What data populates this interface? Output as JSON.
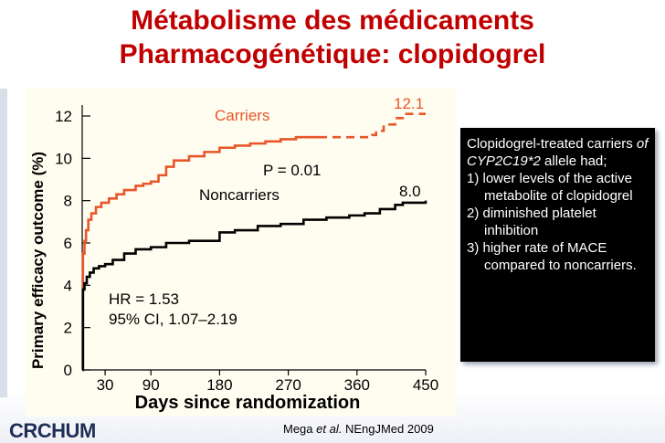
{
  "slide": {
    "title_line1": "Métabolisme des médicaments",
    "title_line2": "Pharmacogénétique: clopidogrel"
  },
  "callout": {
    "intro_a": "Clopidogrel-treated carriers ",
    "intro_allele": "of CYP2C19*2",
    "intro_b": " allele had;",
    "item1": "1) lower levels of the active metabolite of clopidogrel",
    "item2": "2) diminished platelet inhibition",
    "item3": "3) higher rate of MACE compared to noncarriers."
  },
  "footer": {
    "logo": "CRCHUM",
    "citation_author": "Mega",
    "citation_etal": "et al.",
    "citation_rest": " NEngJMed 2009"
  },
  "colors": {
    "title": "#c00000",
    "carriers": "#e8562a",
    "noncarriers": "#000000",
    "chart_background": "#fffdf0"
  },
  "chart_data": {
    "type": "line",
    "xlabel": "Days since randomization",
    "ylabel": "Primary efficacy outcome (%)",
    "xlim": [
      0,
      450
    ],
    "ylim": [
      0,
      12
    ],
    "xticks": [
      30,
      90,
      180,
      270,
      360,
      450
    ],
    "yticks": [
      0,
      2,
      4,
      6,
      8,
      10,
      12
    ],
    "annotations": {
      "p_value": "P = 0.01",
      "hr": "HR = 1.53",
      "ci": "95% CI, 1.07–2.19"
    },
    "series": [
      {
        "name": "Carriers",
        "end_label": "12.1",
        "color": "#e8562a",
        "dashed_from_x": 310,
        "points": [
          [
            0,
            0
          ],
          [
            1,
            5.5
          ],
          [
            3,
            6.1
          ],
          [
            5,
            6.6
          ],
          [
            8,
            7.1
          ],
          [
            12,
            7.4
          ],
          [
            18,
            7.7
          ],
          [
            25,
            7.9
          ],
          [
            35,
            8.1
          ],
          [
            45,
            8.3
          ],
          [
            55,
            8.5
          ],
          [
            70,
            8.7
          ],
          [
            80,
            8.8
          ],
          [
            90,
            8.9
          ],
          [
            100,
            9.2
          ],
          [
            110,
            9.6
          ],
          [
            120,
            9.9
          ],
          [
            140,
            10.1
          ],
          [
            160,
            10.3
          ],
          [
            180,
            10.5
          ],
          [
            200,
            10.6
          ],
          [
            220,
            10.7
          ],
          [
            240,
            10.8
          ],
          [
            260,
            10.9
          ],
          [
            280,
            11.0
          ],
          [
            310,
            11.0
          ],
          [
            330,
            11.0
          ],
          [
            350,
            11.0
          ],
          [
            375,
            11.0
          ],
          [
            380,
            11.1
          ],
          [
            385,
            11.3
          ],
          [
            395,
            11.6
          ],
          [
            410,
            11.9
          ],
          [
            420,
            12.1
          ],
          [
            450,
            12.1
          ]
        ]
      },
      {
        "name": "Noncarriers",
        "end_label": "8.0",
        "color": "#000000",
        "points": [
          [
            0,
            0
          ],
          [
            1,
            3.8
          ],
          [
            3,
            4.1
          ],
          [
            6,
            4.4
          ],
          [
            10,
            4.6
          ],
          [
            15,
            4.8
          ],
          [
            22,
            4.9
          ],
          [
            30,
            5.0
          ],
          [
            40,
            5.2
          ],
          [
            55,
            5.5
          ],
          [
            70,
            5.7
          ],
          [
            90,
            5.8
          ],
          [
            110,
            6.0
          ],
          [
            140,
            6.1
          ],
          [
            160,
            6.1
          ],
          [
            180,
            6.5
          ],
          [
            200,
            6.6
          ],
          [
            230,
            6.8
          ],
          [
            260,
            6.9
          ],
          [
            290,
            7.1
          ],
          [
            320,
            7.2
          ],
          [
            350,
            7.3
          ],
          [
            370,
            7.4
          ],
          [
            390,
            7.6
          ],
          [
            410,
            7.8
          ],
          [
            420,
            7.9
          ],
          [
            450,
            8.0
          ]
        ]
      }
    ]
  }
}
